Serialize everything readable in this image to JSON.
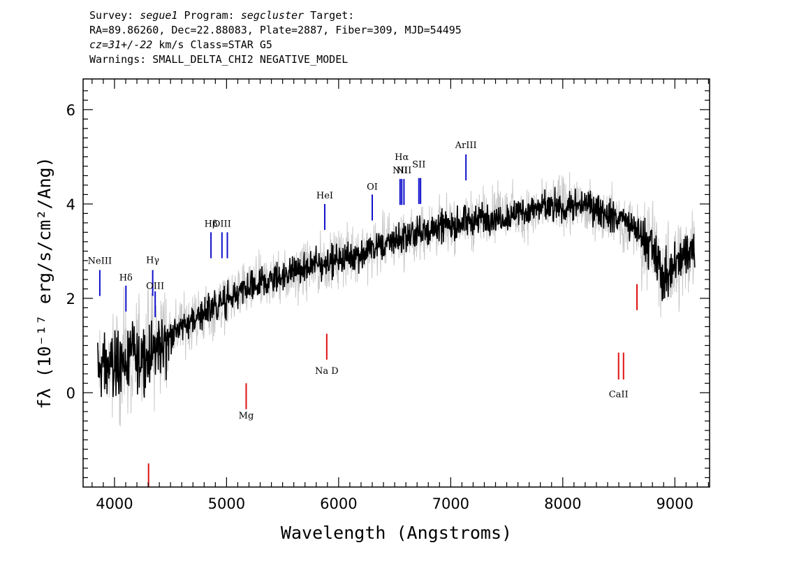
{
  "header": {
    "line1": {
      "survey_label": "Survey:",
      "survey": "segue1",
      "program_label": "Program:",
      "program": "segcluster",
      "target_label": "Target:"
    },
    "line2": "RA=89.86260, Dec=22.88083, Plate=2887, Fiber=309, MJD=54495",
    "line3": {
      "redshift": "cz=31+/-22",
      "unit": "km/s",
      "class_text": "Class=STAR G5"
    },
    "line4": "Warnings: SMALL_DELTA_CHI2 NEGATIVE_MODEL"
  },
  "chart_data": {
    "type": "line",
    "title": "",
    "xlabel": "Wavelength (Angstroms)",
    "ylabel": "fλ (10⁻¹⁷ erg/s/cm²/Ang)",
    "xlim": [
      3720,
      9310
    ],
    "ylim": [
      -2.0,
      6.65
    ],
    "xticks": [
      4000,
      5000,
      6000,
      7000,
      8000,
      9000
    ],
    "yticks": [
      0,
      2,
      4,
      6
    ],
    "grid": false,
    "colors": {
      "flux": "#000000",
      "error": "#c8c8c8",
      "emission": "#1010cc",
      "absorption": "#dd1111"
    },
    "continuum": [
      {
        "x": 3850,
        "y": 0.5
      },
      {
        "x": 4000,
        "y": 0.6
      },
      {
        "x": 4200,
        "y": 0.75
      },
      {
        "x": 4400,
        "y": 1.0
      },
      {
        "x": 4600,
        "y": 1.4
      },
      {
        "x": 4800,
        "y": 1.7
      },
      {
        "x": 5000,
        "y": 1.95
      },
      {
        "x": 5200,
        "y": 2.2
      },
      {
        "x": 5400,
        "y": 2.4
      },
      {
        "x": 5600,
        "y": 2.55
      },
      {
        "x": 5800,
        "y": 2.7
      },
      {
        "x": 6000,
        "y": 2.85
      },
      {
        "x": 6200,
        "y": 2.95
      },
      {
        "x": 6400,
        "y": 3.15
      },
      {
        "x": 6600,
        "y": 3.3
      },
      {
        "x": 6800,
        "y": 3.45
      },
      {
        "x": 7000,
        "y": 3.55
      },
      {
        "x": 7200,
        "y": 3.65
      },
      {
        "x": 7400,
        "y": 3.75
      },
      {
        "x": 7600,
        "y": 3.8
      },
      {
        "x": 7800,
        "y": 3.9
      },
      {
        "x": 8000,
        "y": 3.95
      },
      {
        "x": 8200,
        "y": 3.95
      },
      {
        "x": 8400,
        "y": 3.8
      },
      {
        "x": 8600,
        "y": 3.55
      },
      {
        "x": 8800,
        "y": 3.1
      },
      {
        "x": 8900,
        "y": 2.4
      },
      {
        "x": 9000,
        "y": 2.7
      },
      {
        "x": 9100,
        "y": 2.9
      },
      {
        "x": 9180,
        "y": 3.2
      }
    ],
    "emission_lines": [
      {
        "label": "NeIII",
        "x": 3869,
        "y1": 2.05,
        "y2": 2.6,
        "label_y": 2.73
      },
      {
        "label": "Hδ",
        "x": 4102,
        "y1": 1.72,
        "y2": 2.27,
        "label_y": 2.38
      },
      {
        "label": "Hγ",
        "x": 4341,
        "y1": 2.05,
        "y2": 2.6,
        "label_y": 2.75
      },
      {
        "label": "OIII",
        "x": 4363,
        "y1": 1.6,
        "y2": 2.15,
        "label_y": 2.2
      },
      {
        "label": "Hβ",
        "x": 4861,
        "y1": 2.85,
        "y2": 3.4,
        "label_y": 3.52
      },
      {
        "label": "OIII",
        "x": 4959,
        "y1": 2.85,
        "y2": 3.4,
        "label_y": 3.52
      },
      {
        "label": "",
        "x": 5007,
        "y1": 2.85,
        "y2": 3.4,
        "label_y": 0
      },
      {
        "label": "HeI",
        "x": 5876,
        "y1": 3.45,
        "y2": 4.0,
        "label_y": 4.12
      },
      {
        "label": "OI",
        "x": 6300,
        "y1": 3.65,
        "y2": 4.2,
        "label_y": 4.3
      },
      {
        "label": "NII",
        "x": 6548,
        "y1": 3.98,
        "y2": 4.53,
        "label_y": 4.65
      },
      {
        "label": "Hα",
        "x": 6563,
        "y1": 3.98,
        "y2": 4.53,
        "label_y": 4.93
      },
      {
        "label": "NII",
        "x": 6583,
        "y1": 3.98,
        "y2": 4.53,
        "label_y": 4.65
      },
      {
        "label": "SII",
        "x": 6716,
        "y1": 4.0,
        "y2": 4.55,
        "label_y": 4.78
      },
      {
        "label": "",
        "x": 6731,
        "y1": 4.0,
        "y2": 4.55,
        "label_y": 0
      },
      {
        "label": "ArIII",
        "x": 7136,
        "y1": 4.5,
        "y2": 5.05,
        "label_y": 5.18
      }
    ],
    "absorption_lines": [
      {
        "label": "",
        "x": 4304,
        "y1": -2.0,
        "y2": -1.5,
        "label_y": 0
      },
      {
        "label": "Mg",
        "x": 5175,
        "y1": -0.35,
        "y2": 0.2,
        "label_y": -0.55
      },
      {
        "label": "Na D",
        "x": 5894,
        "y1": 0.7,
        "y2": 1.25,
        "label_y": 0.4
      },
      {
        "label": "CaII",
        "x": 8498,
        "y1": 0.28,
        "y2": 0.85,
        "label_y": -0.1
      },
      {
        "label": "",
        "x": 8542,
        "y1": 0.28,
        "y2": 0.85,
        "label_y": 0
      },
      {
        "label": "",
        "x": 8662,
        "y1": 1.75,
        "y2": 2.3,
        "label_y": 0
      }
    ]
  }
}
